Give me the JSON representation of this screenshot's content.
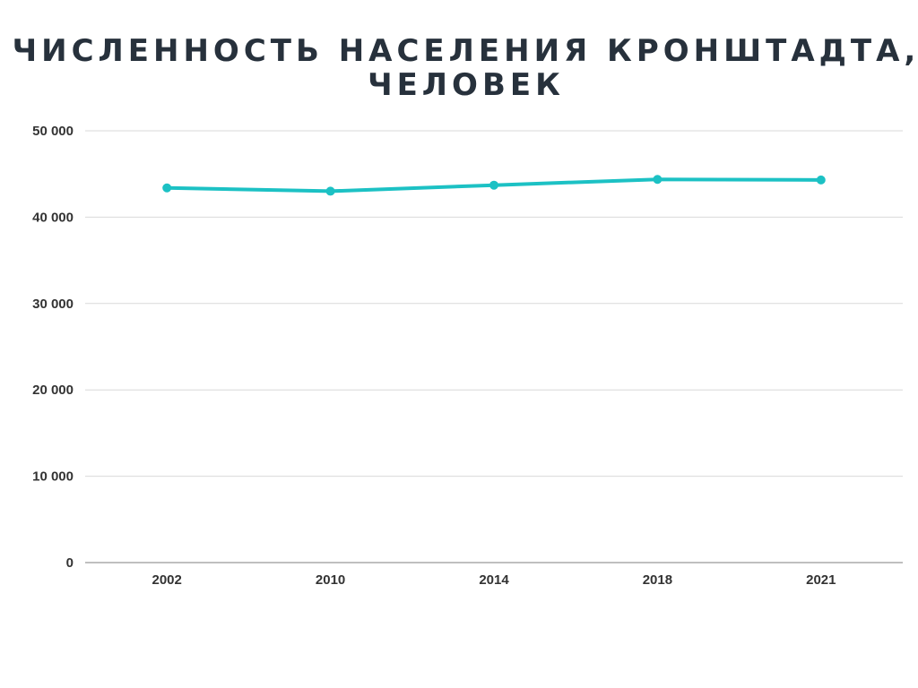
{
  "chart_data": {
    "type": "line",
    "title_lines": [
      "ЧИСЛЕННОСТЬ НАСЕЛЕНИЯ КРОНШТАДТА,",
      "ЧЕЛОВЕК"
    ],
    "categories": [
      "2002",
      "2010",
      "2014",
      "2018",
      "2021"
    ],
    "series": [
      {
        "values": [
          43385,
          43005,
          43704,
          44374,
          44308
        ],
        "color": "#1cc1c4"
      }
    ],
    "y_ticks": [
      0,
      10000,
      20000,
      30000,
      40000,
      50000
    ],
    "y_tick_labels": [
      "0",
      "10 000",
      "20 000",
      "30 000",
      "40 000",
      "50 000"
    ],
    "ylim": [
      0,
      50000
    ],
    "grid": true,
    "legend": "none"
  }
}
